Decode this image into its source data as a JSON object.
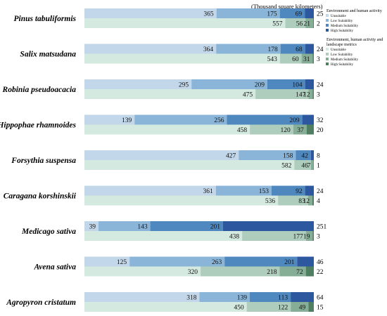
{
  "unit_label": "(Thousand square kilometers)",
  "legend": {
    "groups": [
      {
        "title": "Environment and human activity",
        "items": [
          "Unsuitable",
          "Low Suitability",
          "Medium Suitability",
          "High Suitability"
        ],
        "colors": [
          "#c3d7ea",
          "#8bb5d8",
          "#4f87bf",
          "#2d58a0"
        ]
      },
      {
        "title": "Environment, human activity and landscape metrics",
        "items": [
          "Unsuitable",
          "Low Suitability",
          "Medium Suitability",
          "High Suitability"
        ],
        "colors": [
          "#d4e9df",
          "#aecdbc",
          "#86ad96",
          "#4f7f60"
        ]
      }
    ]
  },
  "chart_data": {
    "type": "bar",
    "orientation": "horizontal",
    "stacked": true,
    "categories": [
      "Pinus tabuliformis",
      "Salix matsudana",
      "Robinia pseudoacacia",
      "Hippophae rhamnoides",
      "Forsythia suspensa",
      "Caragana korshinskii",
      "Medicago sativa",
      "Avena sativa",
      "Agropyron cristatum"
    ],
    "series": [
      {
        "name": "Environment and human activity",
        "segments": [
          "Unsuitable",
          "Low Suitability",
          "Medium Suitability",
          "High Suitability"
        ],
        "colors": [
          "#c3d7ea",
          "#8bb5d8",
          "#4f87bf",
          "#2d58a0"
        ],
        "values": [
          [
            365,
            175,
            69,
            25
          ],
          [
            364,
            178,
            68,
            24
          ],
          [
            295,
            209,
            104,
            24
          ],
          [
            139,
            256,
            209,
            32
          ],
          [
            427,
            158,
            42,
            8
          ],
          [
            361,
            153,
            92,
            24
          ],
          [
            39,
            143,
            201,
            251
          ],
          [
            125,
            263,
            201,
            46
          ],
          [
            318,
            139,
            113,
            64
          ]
        ]
      },
      {
        "name": "Environment, human activity and landscape metrics",
        "segments": [
          "Unsuitable",
          "Low Suitability",
          "Medium Suitability",
          "High Suitability"
        ],
        "colors": [
          "#d4e9df",
          "#aecdbc",
          "#86ad96",
          "#4f7f60"
        ],
        "values": [
          [
            557,
            56,
            21,
            2
          ],
          [
            543,
            60,
            31,
            3
          ],
          [
            475,
            147,
            12,
            3
          ],
          [
            458,
            120,
            37,
            20
          ],
          [
            582,
            46,
            7,
            1
          ],
          [
            536,
            83,
            12,
            4
          ],
          [
            438,
            177,
            19,
            3
          ],
          [
            320,
            218,
            72,
            22
          ],
          [
            450,
            122,
            49,
            15
          ]
        ]
      }
    ]
  }
}
